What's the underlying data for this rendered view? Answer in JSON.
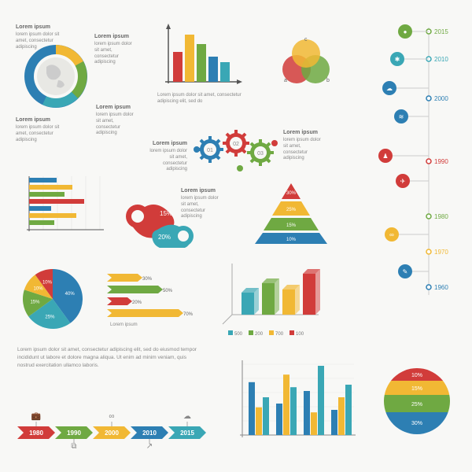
{
  "colors": {
    "red": "#d13c3a",
    "green": "#6fa942",
    "blue": "#2d7fb3",
    "yellow": "#f1b834",
    "teal": "#3aa7b5",
    "gray": "#888",
    "light": "#f8f8f6",
    "axis": "#555"
  },
  "lorem_title": "Lorem ipsum",
  "lorem_body": "lorem ipsum dolor sit amet, consectetur adipiscing",
  "globe_labels": [
    "Lorem ipsum",
    "Lorem ipsum",
    "Lorem ipsum",
    "Lorem ipsum"
  ],
  "bar1": {
    "values": [
      38,
      60,
      48,
      32,
      25
    ],
    "colors": [
      "#d13c3a",
      "#f1b834",
      "#6fa942",
      "#2d7fb3",
      "#3aa7b5"
    ],
    "width": 12,
    "gap": 3,
    "h": 70
  },
  "bar1_caption": "Lorem ipsum dolor sit amet, consectetur adipiscing elit, sed do",
  "venn": {
    "labels": [
      "a",
      "b",
      "c"
    ],
    "colors": [
      "#d13c3a",
      "#6fa942",
      "#f1b834"
    ],
    "r": 18
  },
  "timeline": {
    "years": [
      "2015",
      "2010",
      "2000",
      "1990",
      "1980",
      "1970",
      "1960"
    ],
    "year_colors": [
      "#6fa942",
      "#3aa7b5",
      "#2d7fb3",
      "#d13c3a",
      "#6fa942",
      "#f1b834",
      "#2d7fb3"
    ],
    "nodes": [
      {
        "color": "#6fa942",
        "icon": "●"
      },
      {
        "color": "#3aa7b5",
        "icon": "✱"
      },
      {
        "color": "#2d7fb3",
        "icon": "☁"
      },
      {
        "color": "#2d7fb3",
        "icon": "≋"
      },
      {
        "color": "#d13c3a",
        "icon": "♟"
      },
      {
        "color": "#d13c3a",
        "icon": "✈"
      },
      {
        "color": "#f1b834",
        "icon": "∞"
      },
      {
        "color": "#2d7fb3",
        "icon": "✎"
      }
    ]
  },
  "gears": {
    "nums": [
      "01",
      "02",
      "03"
    ],
    "colors": [
      "#2d7fb3",
      "#d13c3a",
      "#6fa942"
    ]
  },
  "hbar_mini": {
    "values": [
      35,
      55,
      45,
      70,
      28,
      60,
      32
    ],
    "colors": [
      "#2d7fb3",
      "#f1b834",
      "#6fa942",
      "#d13c3a",
      "#2d7fb3",
      "#f1b834",
      "#6fa942"
    ]
  },
  "blobs": {
    "labels": [
      "15%",
      "20%"
    ],
    "colors": [
      "#d13c3a",
      "#3aa7b5"
    ]
  },
  "pyramid": {
    "labels": [
      "30%",
      "25%",
      "15%",
      "10%"
    ],
    "colors": [
      "#d13c3a",
      "#f1b834",
      "#6fa942",
      "#2d7fb3"
    ]
  },
  "pie1": {
    "slices": [
      {
        "l": "40%",
        "c": "#2d7fb3",
        "a": 144
      },
      {
        "l": "25%",
        "c": "#3aa7b5",
        "a": 90
      },
      {
        "l": "15%",
        "c": "#6fa942",
        "a": 54
      },
      {
        "l": "10%",
        "c": "#f1b834",
        "a": 36
      },
      {
        "l": "10%",
        "c": "#d13c3a",
        "a": 36
      }
    ]
  },
  "hbar_pct": {
    "rows": [
      {
        "l": "30%",
        "v": 30,
        "c": "#f1b834"
      },
      {
        "l": "50%",
        "v": 50,
        "c": "#6fa942"
      },
      {
        "l": "20%",
        "v": 20,
        "c": "#d13c3a"
      },
      {
        "l": "70%",
        "v": 70,
        "c": "#f1b834"
      }
    ],
    "cap": "Lorem ipsum"
  },
  "bar3d": {
    "values": [
      28,
      40,
      32,
      52
    ],
    "colors": [
      "#3aa7b5",
      "#6fa942",
      "#f1b834",
      "#d13c3a"
    ],
    "legend": [
      "500",
      "200",
      "700",
      "100"
    ]
  },
  "body_text": "Lorem ipsum dolor sit amet, consectetur adipiscing elit, sed do eiusmod tempor incididunt ut labore et dolore magna aliqua. Ut enim ad minim veniam, quis nostrud exercitation ullamco laboris.",
  "arrows": {
    "years": [
      "1980",
      "1990",
      "2000",
      "2010",
      "2015"
    ],
    "colors": [
      "#d13c3a",
      "#6fa942",
      "#f1b834",
      "#2d7fb3",
      "#3aa7b5"
    ],
    "icons": [
      "💼",
      "⧉",
      "∞",
      "↗",
      "☁"
    ]
  },
  "grouped": {
    "groups": 4,
    "per": 3,
    "values": [
      [
        42,
        22,
        30
      ],
      [
        25,
        48,
        38
      ],
      [
        35,
        18,
        55
      ],
      [
        20,
        30,
        40
      ]
    ],
    "colors": [
      "#2d7fb3",
      "#f1b834",
      "#3aa7b5"
    ]
  },
  "stack_circle": {
    "labels": [
      "10%",
      "15%",
      "25%",
      "30%"
    ],
    "colors": [
      "#d13c3a",
      "#f1b834",
      "#6fa942",
      "#2d7fb3"
    ]
  }
}
